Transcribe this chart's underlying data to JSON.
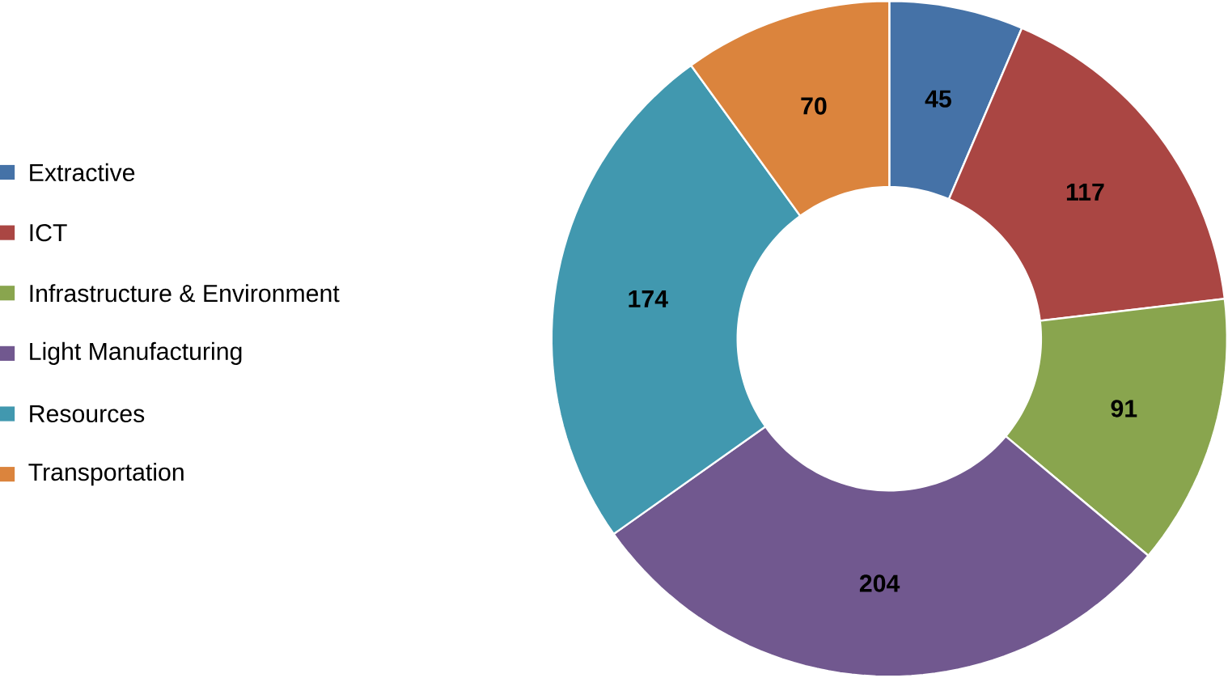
{
  "chart_data": {
    "type": "donut",
    "categories": [
      "Extractive",
      "ICT",
      "Infrastructure & Environment",
      "Light Manufacturing",
      "Resources",
      "Transportation"
    ],
    "values": [
      45,
      117,
      91,
      204,
      174,
      70
    ],
    "colors": [
      "#4572a7",
      "#aa4643",
      "#89a54e",
      "#71588f",
      "#4198af",
      "#db843d"
    ],
    "data_labels": true,
    "legend": "left"
  }
}
